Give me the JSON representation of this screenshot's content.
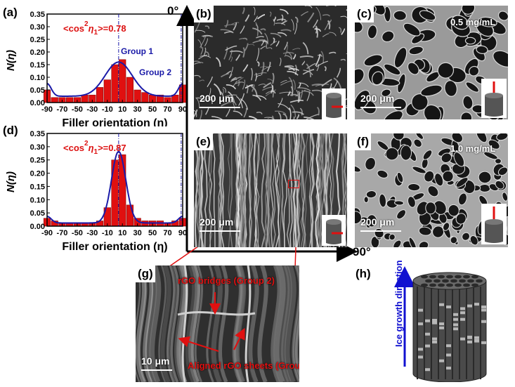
{
  "panels": {
    "a": {
      "label": "(a)",
      "ylabel": "N(η)",
      "xlabel": "Filler orientation (η)",
      "annotation_prefix": "<cos",
      "annotation_sup": "2",
      "annotation_eta": "η",
      "annotation_sub": "1",
      "annotation_value": ">=0.78",
      "group1_label": "Group 1",
      "group2_label": "Group 2"
    },
    "d": {
      "label": "(d)",
      "ylabel": "N(η)",
      "xlabel": "Filler orientation (η)",
      "annotation_prefix": "<cos",
      "annotation_sup": "2",
      "annotation_eta": "η",
      "annotation_sub": "1",
      "annotation_value": ">=0.87"
    },
    "b": {
      "label": "(b)",
      "scalebar": "200 μm"
    },
    "c": {
      "label": "(c)",
      "scalebar": "200 μm",
      "concentration": "0.5 mg/mL"
    },
    "e": {
      "label": "(e)",
      "scalebar": "200 μm"
    },
    "f": {
      "label": "(f)",
      "scalebar": "200 μm",
      "concentration": "1.0 mg/mL"
    },
    "g": {
      "label": "(g)",
      "scalebar": "10 μm",
      "bridges_label": "rGO bridges  (Group 2)",
      "aligned_label": "Aligned rGO sheets (Group 1)"
    },
    "h": {
      "label": "(h)",
      "arrow_label": "Ice growth direction"
    }
  },
  "axis_labels": {
    "top": "0°",
    "right": "90°"
  },
  "colors": {
    "bar": "#e01010",
    "fit_line": "#1a1aa8",
    "annotation": "#dd1111",
    "blue_text": "#1a1aa8",
    "axis_arrow": "#000000",
    "ice_arrow": "#1010d0"
  },
  "chart_data": [
    {
      "type": "bar",
      "panel": "a",
      "x": [
        -90,
        -80,
        -70,
        -60,
        -50,
        -40,
        -30,
        -20,
        -10,
        0,
        10,
        20,
        30,
        40,
        50,
        60,
        70,
        80,
        90
      ],
      "values": [
        0.05,
        0.02,
        0.02,
        0.02,
        0.02,
        0.03,
        0.03,
        0.06,
        0.09,
        0.15,
        0.17,
        0.1,
        0.05,
        0.04,
        0.03,
        0.03,
        0.02,
        0.03,
        0.07
      ],
      "fit": "gaussian + edge peaks",
      "ylim": [
        0,
        0.35
      ],
      "xlim": [
        -90,
        90
      ],
      "yticks": [
        "0.00",
        "0.05",
        "0.10",
        "0.15",
        "0.20",
        "0.25",
        "0.30",
        "0.35"
      ],
      "xticks": [
        "-90",
        "-70",
        "-50",
        "-30",
        "-10",
        "10",
        "30",
        "50",
        "70",
        "90"
      ]
    },
    {
      "type": "bar",
      "panel": "d",
      "x": [
        -90,
        -80,
        -70,
        -60,
        -50,
        -40,
        -30,
        -20,
        -10,
        0,
        10,
        20,
        30,
        40,
        50,
        60,
        70,
        80,
        90
      ],
      "values": [
        0.03,
        0.02,
        0.01,
        0.01,
        0.01,
        0.01,
        0.01,
        0.02,
        0.07,
        0.25,
        0.27,
        0.08,
        0.03,
        0.02,
        0.02,
        0.02,
        0.01,
        0.02,
        0.03
      ],
      "fit": "gaussian + edge peaks",
      "ylim": [
        0,
        0.35
      ],
      "xlim": [
        -90,
        90
      ],
      "yticks": [
        "0.00",
        "0.05",
        "0.10",
        "0.15",
        "0.20",
        "0.25",
        "0.30",
        "0.35"
      ],
      "xticks": [
        "-90",
        "-70",
        "-50",
        "-30",
        "-10",
        "10",
        "30",
        "50",
        "70",
        "90"
      ]
    }
  ]
}
